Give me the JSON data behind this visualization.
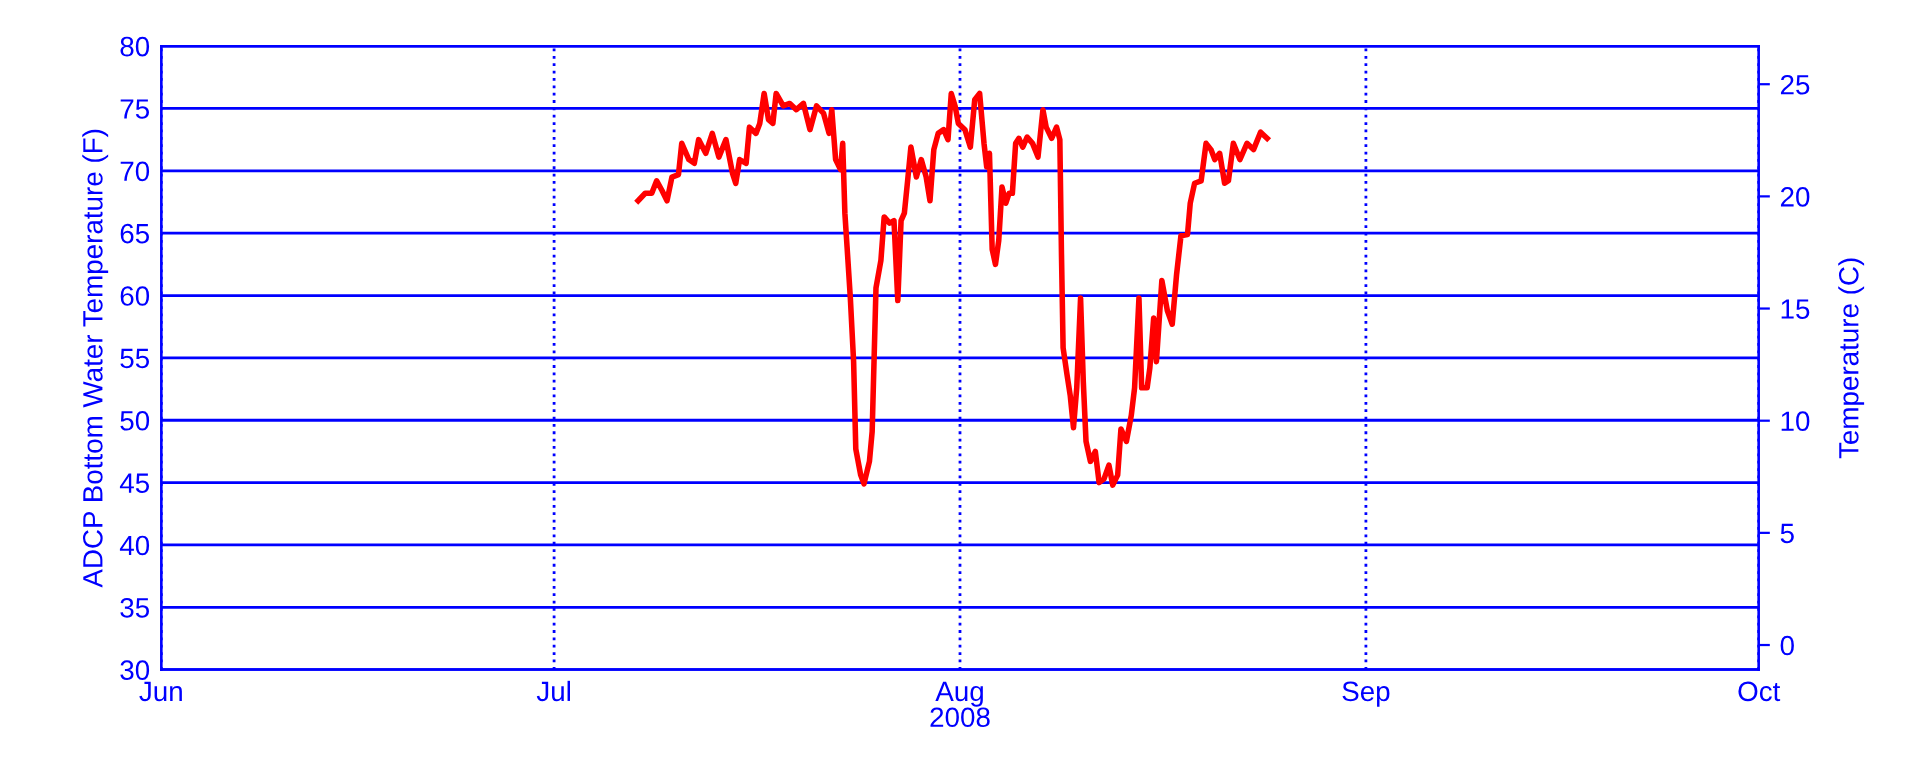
{
  "chart_data": {
    "type": "line",
    "xlabel": "2008",
    "ylabel": "ADCP Bottom Water Temperature (F)",
    "y2label": "Temperature (C)",
    "xlim": [
      "2008-06-01",
      "2008-10-01"
    ],
    "xticks": [
      {
        "value": "2008-06-01",
        "label": "Jun"
      },
      {
        "value": "2008-07-01",
        "label": "Jul"
      },
      {
        "value": "2008-08-01",
        "label": "Aug"
      },
      {
        "value": "2008-09-01",
        "label": "Sep"
      },
      {
        "value": "2008-10-01",
        "label": "Oct"
      }
    ],
    "ylim": [
      30,
      80
    ],
    "yticks": [
      30,
      35,
      40,
      45,
      50,
      55,
      60,
      65,
      70,
      75,
      80
    ],
    "y2lim": [
      -1.1,
      26.7
    ],
    "y2ticks": [
      0,
      5,
      10,
      15,
      20,
      25
    ],
    "grid": true,
    "series": [
      {
        "color": "#ff0000",
        "x": [
          "2008-07-07T10:00",
          "2008-07-07T23:00",
          "2008-07-08T11:00",
          "2008-07-08T20:00",
          "2008-07-09T06:00",
          "2008-07-09T15:00",
          "2008-07-10T00:00",
          "2008-07-10T12:00",
          "2008-07-10T18:00",
          "2008-07-11T07:00",
          "2008-07-11T17:00",
          "2008-07-12T01:00",
          "2008-07-12T14:00",
          "2008-07-13T02:00",
          "2008-07-13T14:00",
          "2008-07-14T03:00",
          "2008-07-14T15:00",
          "2008-07-14T21:00",
          "2008-07-15T04:00",
          "2008-07-15T16:00",
          "2008-07-15T22:00",
          "2008-07-16T10:00",
          "2008-07-16T17:00",
          "2008-07-17T01:00",
          "2008-07-17T09:00",
          "2008-07-17T17:00",
          "2008-07-17T23:00",
          "2008-07-18T12:00",
          "2008-07-19T00:00",
          "2008-07-19T12:00",
          "2008-07-20T01:00",
          "2008-07-20T13:00",
          "2008-07-21T01:00",
          "2008-07-21T14:00",
          "2008-07-22T00:00",
          "2008-07-22T05:00",
          "2008-07-22T12:00",
          "2008-07-22T21:00",
          "2008-07-23T01:00",
          "2008-07-23T05:00",
          "2008-07-23T09:00",
          "2008-07-23T15:00",
          "2008-07-23T21:00",
          "2008-07-24T01:00",
          "2008-07-24T10:00",
          "2008-07-24T16:00",
          "2008-07-25T02:00",
          "2008-07-25T07:00",
          "2008-07-25T14:00",
          "2008-07-25T23:00",
          "2008-07-26T05:00",
          "2008-07-26T15:00",
          "2008-07-26T23:00",
          "2008-07-27T06:00",
          "2008-07-27T12:00",
          "2008-07-27T18:00",
          "2008-07-28T00:00",
          "2008-07-28T06:00",
          "2008-07-28T16:00",
          "2008-07-29T01:00",
          "2008-07-29T10:00",
          "2008-07-29T17:00",
          "2008-07-30T00:00",
          "2008-07-30T08:00",
          "2008-07-30T18:00",
          "2008-07-31T02:00",
          "2008-07-31T08:00",
          "2008-07-31T15:00",
          "2008-07-31T21:00",
          "2008-08-01T09:00",
          "2008-08-01T19:00",
          "2008-08-02T03:00",
          "2008-08-02T12:00",
          "2008-08-02T20:00",
          "2008-08-03T01:00",
          "2008-08-03T06:00",
          "2008-08-03T11:00",
          "2008-08-03T17:00",
          "2008-08-03T23:00",
          "2008-08-04T05:00",
          "2008-08-04T12:00",
          "2008-08-04T18:00",
          "2008-08-05T00:00",
          "2008-08-05T06:00",
          "2008-08-05T12:00",
          "2008-08-05T19:00",
          "2008-08-06T03:00",
          "2008-08-06T13:00",
          "2008-08-06T23:00",
          "2008-08-07T08:00",
          "2008-08-07T14:00",
          "2008-08-08T00:00",
          "2008-08-08T09:00",
          "2008-08-08T15:00",
          "2008-08-08T18:00",
          "2008-08-08T21:00",
          "2008-08-09T04:00",
          "2008-08-09T10:00",
          "2008-08-09T16:00",
          "2008-08-09T22:00",
          "2008-08-10T05:00",
          "2008-08-10T10:00",
          "2008-08-10T15:00",
          "2008-08-10T23:00",
          "2008-08-11T08:00",
          "2008-08-11T15:00",
          "2008-08-12T00:00",
          "2008-08-12T09:00",
          "2008-08-12T16:00",
          "2008-08-13T01:00",
          "2008-08-13T07:00",
          "2008-08-13T17:00",
          "2008-08-14T02:00",
          "2008-08-14T08:00",
          "2008-08-14T16:00",
          "2008-08-14T21:00",
          "2008-08-15T07:00",
          "2008-08-15T12:00",
          "2008-08-15T19:00",
          "2008-08-16T00:00",
          "2008-08-16T10:00",
          "2008-08-16T20:00",
          "2008-08-17T05:00",
          "2008-08-17T13:00",
          "2008-08-17T21:00",
          "2008-08-18T09:00",
          "2008-08-18T14:00",
          "2008-08-18T22:00",
          "2008-08-19T10:00",
          "2008-08-19T19:00",
          "2008-08-20T04:00",
          "2008-08-20T11:00",
          "2008-08-20T20:00",
          "2008-08-21T05:00",
          "2008-08-21T12:00",
          "2008-08-21T21:00",
          "2008-08-22T09:00",
          "2008-08-22T22:00",
          "2008-08-23T10:00",
          "2008-08-23T23:00",
          "2008-08-24T11:00"
        ],
        "values": [
          67.6,
          68.2,
          68.2,
          69.2,
          68.4,
          67.6,
          69.5,
          69.7,
          72.2,
          70.9,
          70.6,
          72.5,
          71.4,
          73.0,
          71.1,
          72.5,
          69.8,
          69.0,
          70.9,
          70.6,
          73.5,
          73.0,
          73.8,
          76.2,
          74.1,
          73.8,
          76.2,
          75.2,
          75.4,
          74.9,
          75.4,
          73.3,
          75.2,
          74.6,
          73.0,
          74.9,
          70.9,
          70.1,
          72.2,
          66.6,
          63.9,
          59.8,
          54.7,
          47.7,
          45.6,
          44.9,
          46.7,
          49.1,
          60.6,
          62.8,
          66.3,
          65.8,
          66.0,
          59.6,
          66.0,
          66.6,
          69.2,
          71.9,
          69.5,
          70.9,
          69.5,
          67.6,
          71.7,
          73.0,
          73.3,
          72.5,
          76.2,
          75.2,
          73.8,
          73.3,
          71.9,
          75.7,
          76.2,
          72.2,
          70.3,
          71.4,
          63.7,
          62.5,
          64.4,
          68.7,
          67.4,
          68.2,
          68.2,
          72.2,
          72.6,
          71.9,
          72.7,
          72.2,
          71.1,
          74.9,
          73.5,
          72.6,
          73.5,
          72.5,
          63.3,
          55.8,
          53.7,
          52.0,
          49.4,
          52.6,
          59.8,
          53.1,
          48.3,
          46.7,
          47.5,
          45.0,
          45.3,
          46.4,
          44.8,
          45.6,
          49.3,
          48.3,
          50.4,
          52.6,
          59.8,
          52.6,
          52.6,
          54.2,
          58.2,
          54.7,
          61.2,
          58.8,
          57.7,
          61.7,
          64.8,
          64.9,
          67.4,
          69.0,
          69.2,
          72.2,
          71.7,
          70.9,
          71.4,
          69.0,
          69.2,
          72.2,
          70.9,
          72.2,
          71.7,
          73.1,
          72.6
        ]
      }
    ]
  }
}
